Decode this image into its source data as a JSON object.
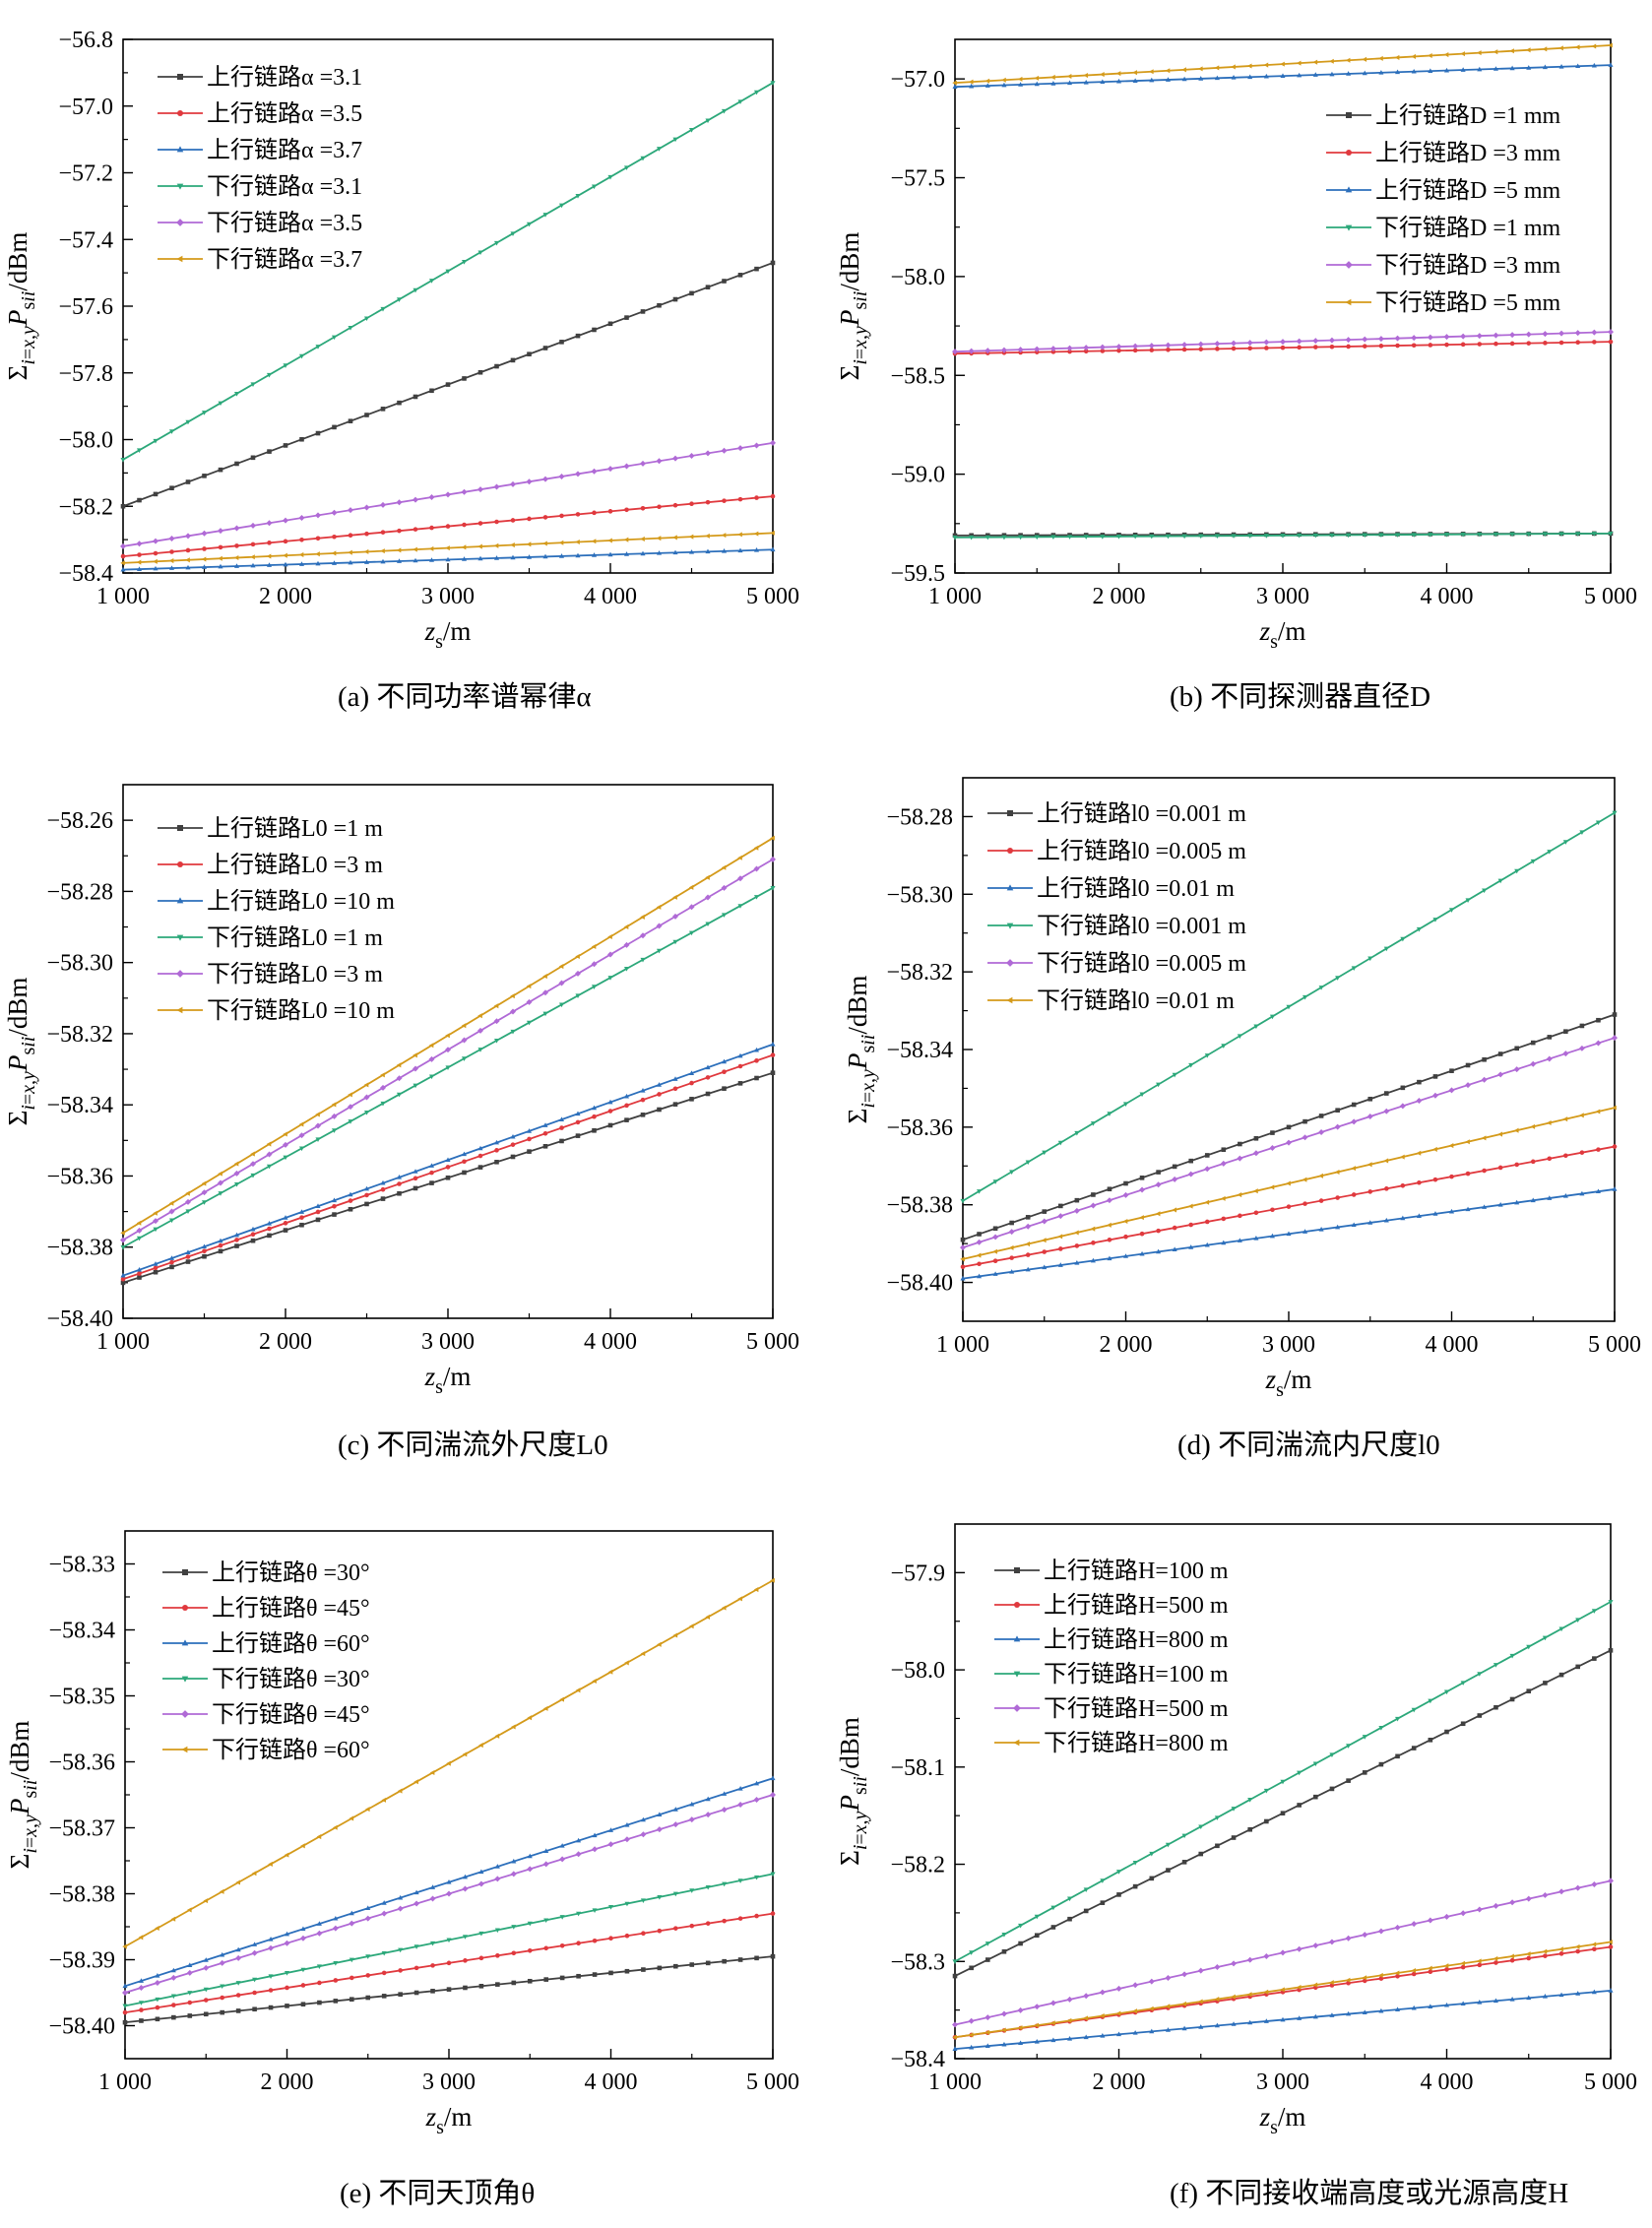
{
  "chart_data": [
    {
      "panel": "a",
      "type": "line",
      "caption": "(a) 不同功率谱幂律α",
      "xlabel": "zs/m",
      "ylabel": "Σi=x,yPsii/dBm",
      "xlim": [
        1000,
        5000
      ],
      "ylim": [
        -58.4,
        -56.8
      ],
      "xticks": [
        1000,
        2000,
        3000,
        4000,
        5000
      ],
      "xtick_labels": [
        "1 000",
        "2 000",
        "3 000",
        "4 000",
        "5 000"
      ],
      "yticks": [
        -58.4,
        -58.2,
        -58.0,
        -57.8,
        -57.6,
        -57.4,
        -57.2,
        -57.0,
        -56.8
      ],
      "ytick_labels": [
        "-58.4",
        "-58.2",
        "-58.0",
        "-57.8",
        "-57.6",
        "-57.4",
        "-57.2",
        "-57.0",
        "-56.8"
      ],
      "legend_position": "top-left",
      "x": [
        1000,
        5000
      ],
      "series": [
        {
          "name": "上行链路α =3.1",
          "color": "#404040",
          "marker": "square",
          "values": [
            -58.2,
            -57.47
          ]
        },
        {
          "name": "上行链路α =3.5",
          "color": "#e0393e",
          "marker": "circle",
          "values": [
            -58.35,
            -58.17
          ]
        },
        {
          "name": "上行链路α =3.7",
          "color": "#2c6fbb",
          "marker": "triangle",
          "values": [
            -58.39,
            -58.33
          ]
        },
        {
          "name": "下行链路α =3.1",
          "color": "#2ca87a",
          "marker": "triangle-down",
          "values": [
            -58.06,
            -56.93
          ]
        },
        {
          "name": "下行链路α =3.5",
          "color": "#b06ad6",
          "marker": "diamond",
          "values": [
            -58.32,
            -58.01
          ]
        },
        {
          "name": "下行链路α =3.7",
          "color": "#d49a1a",
          "marker": "triangle-left",
          "values": [
            -58.37,
            -58.28
          ]
        }
      ]
    },
    {
      "panel": "b",
      "type": "line",
      "caption": "(b) 不同探测器直径D",
      "xlabel": "zs/m",
      "ylabel": "Σi=x,yPsii/dBm",
      "xlim": [
        1000,
        5000
      ],
      "ylim": [
        -59.5,
        -56.8
      ],
      "xticks": [
        1000,
        2000,
        3000,
        4000,
        5000
      ],
      "xtick_labels": [
        "1 000",
        "2 000",
        "3 000",
        "4 000",
        "5 000"
      ],
      "yticks": [
        -59.5,
        -59.0,
        -58.5,
        -58.0,
        -57.5,
        -57.0
      ],
      "ytick_labels": [
        "-59.5",
        "-59.0",
        "-58.5",
        "-58.0",
        "-57.5",
        "-57.0"
      ],
      "legend_position": "top-right",
      "x": [
        1000,
        5000
      ],
      "series": [
        {
          "name": "上行链路D =1 mm",
          "color": "#404040",
          "marker": "square",
          "values": [
            -59.31,
            -59.3
          ]
        },
        {
          "name": "上行链路D =3 mm",
          "color": "#e0393e",
          "marker": "circle",
          "values": [
            -58.39,
            -58.33
          ]
        },
        {
          "name": "上行链路D =5 mm",
          "color": "#2c6fbb",
          "marker": "triangle",
          "values": [
            -57.04,
            -56.93
          ]
        },
        {
          "name": "下行链路D =1 mm",
          "color": "#2ca87a",
          "marker": "triangle-down",
          "values": [
            -59.32,
            -59.3
          ]
        },
        {
          "name": "下行链路D =3 mm",
          "color": "#b06ad6",
          "marker": "diamond",
          "values": [
            -58.38,
            -58.28
          ]
        },
        {
          "name": "下行链路D =5 mm",
          "color": "#d49a1a",
          "marker": "triangle-left",
          "values": [
            -57.02,
            -56.83
          ]
        }
      ]
    },
    {
      "panel": "c",
      "type": "line",
      "caption": "(c) 不同湍流外尺度L0",
      "xlabel": "zs/m",
      "ylabel": "Σi=x,yPsii/dBm",
      "xlim": [
        1000,
        5000
      ],
      "ylim": [
        -58.4,
        -58.25
      ],
      "xticks": [
        1000,
        2000,
        3000,
        4000,
        5000
      ],
      "xtick_labels": [
        "1 000",
        "2 000",
        "3 000",
        "4 000",
        "5 000"
      ],
      "yticks": [
        -58.4,
        -58.38,
        -58.36,
        -58.34,
        -58.32,
        -58.3,
        -58.28,
        -58.26
      ],
      "ytick_labels": [
        "-58.40",
        "-58.38",
        "-58.36",
        "-58.34",
        "-58.32",
        "-58.30",
        "-58.28",
        "-58.26"
      ],
      "legend_position": "top-left",
      "x": [
        1000,
        5000
      ],
      "series": [
        {
          "name": "上行链路L0 =1 m",
          "color": "#404040",
          "marker": "square",
          "values": [
            -58.39,
            -58.331
          ]
        },
        {
          "name": "上行链路L0 =3 m",
          "color": "#e0393e",
          "marker": "circle",
          "values": [
            -58.389,
            -58.326
          ]
        },
        {
          "name": "上行链路L0 =10 m",
          "color": "#2c6fbb",
          "marker": "triangle",
          "values": [
            -58.388,
            -58.323
          ]
        },
        {
          "name": "下行链路L0 =1 m",
          "color": "#2ca87a",
          "marker": "triangle-down",
          "values": [
            -58.38,
            -58.279
          ]
        },
        {
          "name": "下行链路L0 =3 m",
          "color": "#b06ad6",
          "marker": "diamond",
          "values": [
            -58.378,
            -58.271
          ]
        },
        {
          "name": "下行链路L0 =10 m",
          "color": "#d49a1a",
          "marker": "triangle-left",
          "values": [
            -58.376,
            -58.265
          ]
        }
      ]
    },
    {
      "panel": "d",
      "type": "line",
      "caption": "(d) 不同湍流内尺度l0",
      "xlabel": "zs/m",
      "ylabel": "Σi=x,yPsii/dBm",
      "xlim": [
        1000,
        5000
      ],
      "ylim": [
        -58.41,
        -58.27
      ],
      "xticks": [
        1000,
        2000,
        3000,
        4000,
        5000
      ],
      "xtick_labels": [
        "1 000",
        "2 000",
        "3 000",
        "4 000",
        "5 000"
      ],
      "yticks": [
        -58.4,
        -58.38,
        -58.36,
        -58.34,
        -58.32,
        -58.3,
        -58.28
      ],
      "ytick_labels": [
        "-58.40",
        "-58.38",
        "-58.36",
        "-58.34",
        "-58.32",
        "-58.30",
        "-58.28"
      ],
      "legend_position": "top-left",
      "x": [
        1000,
        5000
      ],
      "series": [
        {
          "name": "上行链路l0 =0.001 m",
          "color": "#404040",
          "marker": "square",
          "values": [
            -58.389,
            -58.331
          ]
        },
        {
          "name": "上行链路l0 =0.005 m",
          "color": "#e0393e",
          "marker": "circle",
          "values": [
            -58.396,
            -58.365
          ]
        },
        {
          "name": "上行链路l0 =0.01 m",
          "color": "#2c6fbb",
          "marker": "triangle",
          "values": [
            -58.399,
            -58.376
          ]
        },
        {
          "name": "下行链路l0 =0.001 m",
          "color": "#2ca87a",
          "marker": "triangle-down",
          "values": [
            -58.379,
            -58.279
          ]
        },
        {
          "name": "下行链路l0 =0.005 m",
          "color": "#b06ad6",
          "marker": "diamond",
          "values": [
            -58.391,
            -58.337
          ]
        },
        {
          "name": "下行链路l0 =0.01 m",
          "color": "#d49a1a",
          "marker": "triangle-left",
          "values": [
            -58.394,
            -58.355
          ]
        }
      ]
    },
    {
      "panel": "e",
      "type": "line",
      "caption": "(e) 不同天顶角θ",
      "xlabel": "zs/m",
      "ylabel": "Σi=x,yPsii/dBm",
      "xlim": [
        1000,
        5000
      ],
      "ylim": [
        -58.405,
        -58.325
      ],
      "xticks": [
        1000,
        2000,
        3000,
        4000,
        5000
      ],
      "xtick_labels": [
        "1 000",
        "2 000",
        "3 000",
        "4 000",
        "5 000"
      ],
      "yticks": [
        -58.4,
        -58.39,
        -58.38,
        -58.37,
        -58.36,
        -58.35,
        -58.34,
        -58.33
      ],
      "ytick_labels": [
        "-58.40",
        "-58.39",
        "-58.38",
        "-58.37",
        "-58.36",
        "-58.35",
        "-58.34",
        "-58.33"
      ],
      "legend_position": "top-left",
      "x": [
        1000,
        5000
      ],
      "series": [
        {
          "name": "上行链路θ =30°",
          "color": "#404040",
          "marker": "square",
          "values": [
            -58.3995,
            -58.3895
          ]
        },
        {
          "name": "上行链路θ =45°",
          "color": "#e0393e",
          "marker": "circle",
          "values": [
            -58.398,
            -58.383
          ]
        },
        {
          "name": "上行链路θ =60°",
          "color": "#2c6fbb",
          "marker": "triangle",
          "values": [
            -58.394,
            -58.3625
          ]
        },
        {
          "name": "下行链路θ =30°",
          "color": "#2ca87a",
          "marker": "triangle-down",
          "values": [
            -58.397,
            -58.377
          ]
        },
        {
          "name": "下行链路θ =45°",
          "color": "#b06ad6",
          "marker": "diamond",
          "values": [
            -58.395,
            -58.365
          ]
        },
        {
          "name": "下行链路θ =60°",
          "color": "#d49a1a",
          "marker": "triangle-left",
          "values": [
            -58.388,
            -58.3325
          ]
        }
      ]
    },
    {
      "panel": "f",
      "type": "line",
      "caption": "(f) 不同接收端高度或光源高度H",
      "xlabel": "zs/m",
      "ylabel": "Σi=x,yPsii/dBm",
      "xlim": [
        1000,
        5000
      ],
      "ylim": [
        -58.4,
        -57.85
      ],
      "xticks": [
        1000,
        2000,
        3000,
        4000,
        5000
      ],
      "xtick_labels": [
        "1 000",
        "2 000",
        "3 000",
        "4 000",
        "5 000"
      ],
      "yticks": [
        -58.4,
        -58.3,
        -58.2,
        -58.1,
        -58.0,
        -57.9
      ],
      "ytick_labels": [
        "-58.4",
        "-58.3",
        "-58.2",
        "-58.1",
        "-58.0",
        "-57.9"
      ],
      "legend_position": "top-left",
      "x": [
        1000,
        5000
      ],
      "series": [
        {
          "name": "上行链路H=100 m",
          "color": "#404040",
          "marker": "square",
          "values": [
            -58.315,
            -57.98
          ]
        },
        {
          "name": "上行链路H=500 m",
          "color": "#e0393e",
          "marker": "circle",
          "values": [
            -58.378,
            -58.285
          ]
        },
        {
          "name": "上行链路H=800 m",
          "color": "#2c6fbb",
          "marker": "triangle",
          "values": [
            -58.39,
            -58.33
          ]
        },
        {
          "name": "下行链路H=100 m",
          "color": "#2ca87a",
          "marker": "triangle-down",
          "values": [
            -58.3,
            -57.93
          ]
        },
        {
          "name": "下行链路H=500 m",
          "color": "#b06ad6",
          "marker": "diamond",
          "values": [
            -58.365,
            -58.217
          ]
        },
        {
          "name": "下行链路H=800 m",
          "color": "#d49a1a",
          "marker": "triangle-left",
          "values": [
            -58.378,
            -58.28
          ]
        }
      ]
    }
  ]
}
